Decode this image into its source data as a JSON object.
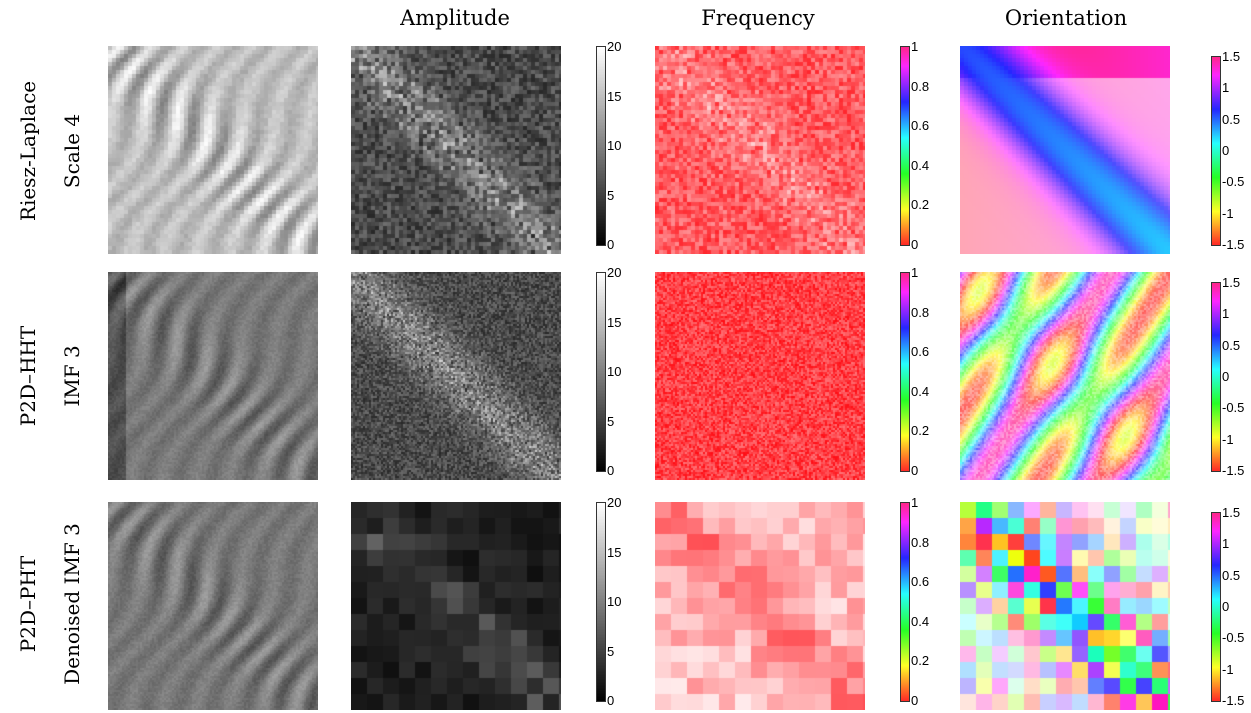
{
  "column_titles": {
    "amplitude": "Amplitude",
    "frequency": "Frequency",
    "orientation": "Orientation"
  },
  "rows": [
    {
      "method": "Riesz-Laplace",
      "sublabel": "Scale 4",
      "style": "riesz"
    },
    {
      "method": "P2D–HHT",
      "sublabel": "IMF 3",
      "style": "hht"
    },
    {
      "method": "P2D–PHT",
      "sublabel": "Denoised IMF 3",
      "style": "pht"
    }
  ],
  "colorbars": {
    "amplitude": {
      "colormap": "gray",
      "ticks": [
        "20",
        "15",
        "10",
        "5",
        "0"
      ],
      "range": [
        0,
        20
      ]
    },
    "frequency": {
      "colormap": "hsv",
      "ticks": [
        "1",
        "0.8",
        "0.6",
        "0.4",
        "0.2",
        "0"
      ],
      "range": [
        0,
        1
      ]
    },
    "orientation": {
      "colormap": "hsv",
      "ticks": [
        "1.5",
        "1",
        "0.5",
        "0",
        "-0.5",
        "-1",
        "-1.5"
      ],
      "range": [
        -1.5,
        1.5
      ]
    }
  }
}
